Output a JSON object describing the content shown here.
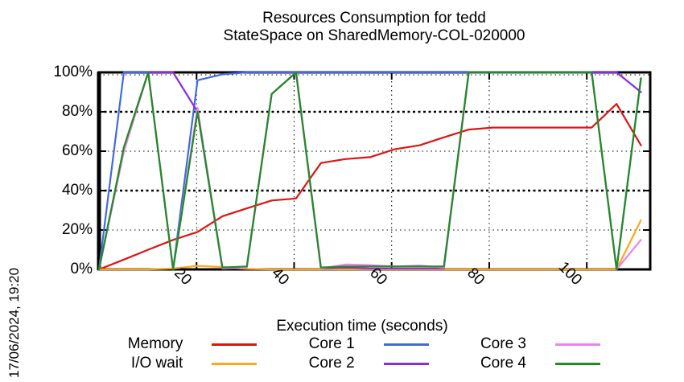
{
  "title": {
    "line1": "Resources Consumption for tedd",
    "line2": "StateSpace on SharedMemory-COL-020000"
  },
  "timestamp": "17/06/2024, 19:20",
  "chart_data": {
    "type": "line",
    "title": "Resources Consumption for tedd — StateSpace on SharedMemory-COL-020000",
    "xlabel": "Execution time (seconds)",
    "ylabel": "",
    "xlim": [
      0,
      113
    ],
    "ylim": [
      0,
      100
    ],
    "grid": true,
    "legend_position": "bottom",
    "xticks": [
      20,
      40,
      60,
      80,
      100
    ],
    "xtick_labels": [
      "20",
      "40",
      "60",
      "80",
      "100"
    ],
    "yticks": [
      0,
      20,
      40,
      60,
      80,
      100
    ],
    "ytick_labels": [
      "0%",
      "20%",
      "40%",
      "60%",
      "80%",
      "100%"
    ],
    "x": [
      0,
      5.1,
      10.1,
      15.2,
      20.2,
      25.3,
      30.3,
      35.4,
      40.4,
      45.5,
      50.5,
      55.6,
      60.6,
      65.7,
      70.7,
      75.8,
      80.8,
      85.9,
      90.9,
      96.0,
      101.0,
      106.1,
      111.1
    ],
    "series": [
      {
        "name": "Memory",
        "color": "#e01313",
        "values": [
          0,
          5,
          10,
          15,
          19,
          27,
          31,
          35,
          36,
          54,
          56,
          57,
          61,
          63,
          67,
          71,
          72,
          72,
          72,
          72,
          72,
          84,
          63
        ]
      },
      {
        "name": "I/O wait",
        "color": "#ffa620",
        "values": [
          0,
          0,
          0,
          0.5,
          1.8,
          1.2,
          0.3,
          0,
          0,
          0,
          0,
          0,
          0,
          0,
          0,
          0,
          0,
          0,
          0,
          0,
          0,
          0,
          25
        ]
      },
      {
        "name": "Core 1",
        "color": "#4169e1",
        "values": [
          0,
          100,
          100,
          0,
          96,
          99,
          100,
          100,
          100,
          100,
          100,
          100,
          100,
          100,
          100,
          100,
          100,
          100,
          100,
          100,
          100,
          0,
          97
        ]
      },
      {
        "name": "Core 2",
        "color": "#8a2be2",
        "values": [
          0,
          60,
          100,
          100,
          80,
          0.5,
          1,
          89,
          100,
          0.5,
          1,
          0.5,
          0.5,
          0.5,
          0.5,
          100,
          100,
          100,
          100,
          100,
          100,
          100,
          90
        ]
      },
      {
        "name": "Core 3",
        "color": "#ee82ee",
        "values": [
          0,
          60,
          100,
          0,
          82,
          0.5,
          1,
          89,
          100,
          0.5,
          2.5,
          2.2,
          1.5,
          2,
          1,
          100,
          100,
          100,
          100,
          100,
          100,
          0,
          15
        ]
      },
      {
        "name": "Core 4",
        "color": "#228b22",
        "values": [
          0,
          62,
          100,
          0,
          80,
          1,
          1.5,
          89,
          100,
          1,
          1.5,
          1.5,
          1.5,
          1.5,
          1.5,
          100,
          100,
          100,
          100,
          100,
          100,
          0,
          97
        ]
      }
    ]
  }
}
